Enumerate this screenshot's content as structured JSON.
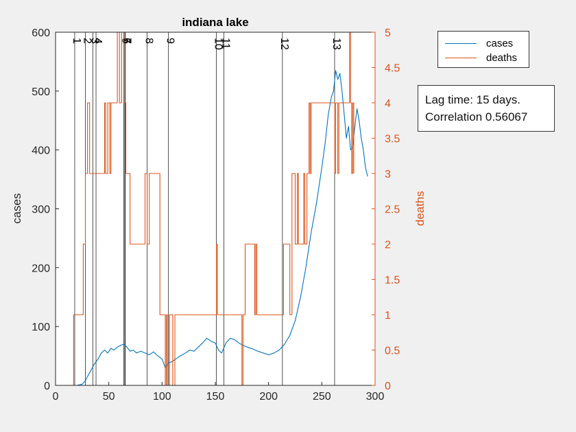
{
  "chart_data": {
    "type": "line",
    "title": "indiana lake",
    "xlabel": "",
    "ylabel": "cases",
    "y2label": "deaths",
    "xlim": [
      0,
      300
    ],
    "ylim": [
      0,
      600
    ],
    "y2lim": [
      0,
      5
    ],
    "xticks": [
      0,
      50,
      100,
      150,
      200,
      250,
      300
    ],
    "yticks": [
      0,
      100,
      200,
      300,
      400,
      500,
      600
    ],
    "y2ticks": [
      "0",
      "0.5",
      "1",
      "1.5",
      "2",
      "2.5",
      "3",
      "3.5",
      "4",
      "4.5",
      "5"
    ],
    "grid": false,
    "legend_position": "top-right outside",
    "colors": {
      "cases": "#0072bd",
      "deaths": "#d95319"
    },
    "event_lines": [
      {
        "label": "1",
        "x": 18
      },
      {
        "label": "2",
        "x": 28
      },
      {
        "label": "3",
        "x": 35
      },
      {
        "label": "4",
        "x": 38
      },
      {
        "label": "5",
        "x": 64
      },
      {
        "label": "6",
        "x": 65
      },
      {
        "label": "7",
        "x": 65.5
      },
      {
        "label": "8",
        "x": 86
      },
      {
        "label": "9",
        "x": 106
      },
      {
        "label": "10",
        "x": 151
      },
      {
        "label": "11",
        "x": 158
      },
      {
        "label": "12",
        "x": 213
      },
      {
        "label": "13",
        "x": 262
      }
    ],
    "series": [
      {
        "name": "cases",
        "axis": "left",
        "x": [
          20,
          25,
          28,
          30,
          33,
          36,
          40,
          43,
          46,
          49,
          52,
          55,
          58,
          61,
          64,
          67,
          70,
          73,
          76,
          80,
          84,
          88,
          92,
          96,
          100,
          103,
          106,
          109,
          113,
          117,
          122,
          126,
          130,
          134,
          138,
          142,
          146,
          150,
          153,
          156,
          160,
          164,
          168,
          172,
          176,
          180,
          185,
          190,
          195,
          200,
          205,
          210,
          215,
          220,
          225,
          230,
          235,
          240,
          245,
          250,
          253,
          256,
          259,
          261,
          263,
          265,
          267,
          269,
          271,
          273,
          275,
          277,
          279,
          281,
          283,
          285,
          287,
          289,
          291,
          293
        ],
        "values": [
          0,
          2,
          8,
          15,
          25,
          35,
          45,
          55,
          60,
          55,
          63,
          60,
          65,
          68,
          70,
          65,
          58,
          60,
          55,
          58,
          55,
          52,
          57,
          50,
          45,
          30,
          38,
          40,
          45,
          50,
          55,
          60,
          58,
          65,
          72,
          80,
          75,
          72,
          60,
          55,
          72,
          80,
          78,
          72,
          68,
          65,
          62,
          58,
          55,
          52,
          55,
          60,
          70,
          85,
          110,
          150,
          200,
          260,
          310,
          370,
          410,
          460,
          490,
          500,
          535,
          520,
          530,
          500,
          460,
          420,
          440,
          400,
          405,
          440,
          470,
          450,
          420,
          400,
          370,
          355
        ]
      },
      {
        "name": "deaths",
        "axis": "right",
        "x": [
          16,
          17,
          17,
          26,
          26,
          28,
          28,
          30,
          30,
          32,
          32,
          46,
          46,
          47,
          47,
          49,
          49,
          51,
          51,
          52,
          52,
          58,
          58,
          60,
          60,
          62,
          62,
          64,
          64,
          66,
          66,
          68,
          68,
          70,
          70,
          84,
          84,
          86,
          86,
          88,
          88,
          98,
          98,
          103,
          103,
          104,
          104,
          105,
          105,
          107,
          107,
          110,
          110,
          112,
          112,
          151,
          151,
          152,
          152,
          175,
          175,
          176,
          176,
          178,
          178,
          187,
          187,
          188,
          188,
          189,
          189,
          190,
          190,
          214,
          214,
          220,
          220,
          222,
          222,
          225,
          225,
          227,
          227,
          228,
          228,
          233,
          233,
          234,
          234,
          236,
          236,
          238,
          238,
          239,
          239,
          240,
          240,
          242,
          242,
          262,
          262,
          263,
          263,
          265,
          265,
          266,
          266,
          268,
          268,
          276,
          276,
          277,
          277,
          278,
          278,
          279,
          279,
          280,
          280
        ],
        "values": [
          0,
          0,
          1,
          1,
          2,
          2,
          3,
          3,
          4,
          4,
          3,
          3,
          4,
          4,
          3,
          3,
          4,
          4,
          3,
          3,
          4,
          4,
          5,
          5,
          4,
          4,
          5,
          5,
          4,
          4,
          3,
          3,
          3,
          3,
          2,
          2,
          3,
          3,
          2,
          2,
          3,
          3,
          1,
          1,
          0,
          0,
          1,
          1,
          0,
          0,
          1,
          1,
          0,
          0,
          1,
          1,
          2,
          2,
          1,
          1,
          0,
          0,
          1,
          1,
          2,
          2,
          1,
          1,
          2,
          2,
          1,
          1,
          1,
          1,
          2,
          2,
          1,
          1,
          3,
          3,
          2,
          2,
          3,
          3,
          2,
          2,
          3,
          3,
          2,
          2,
          3,
          3,
          4,
          4,
          3,
          3,
          4,
          4,
          4,
          4,
          3,
          3,
          4,
          4,
          3,
          3,
          4,
          4,
          4,
          4,
          5,
          5,
          4,
          4,
          3,
          3,
          4,
          4,
          3
        ]
      }
    ]
  },
  "legend": {
    "cases_label": "cases",
    "deaths_label": "deaths"
  },
  "annotation": {
    "line1": "Lag time: 15 days.",
    "line2": "Correlation 0.56067"
  }
}
